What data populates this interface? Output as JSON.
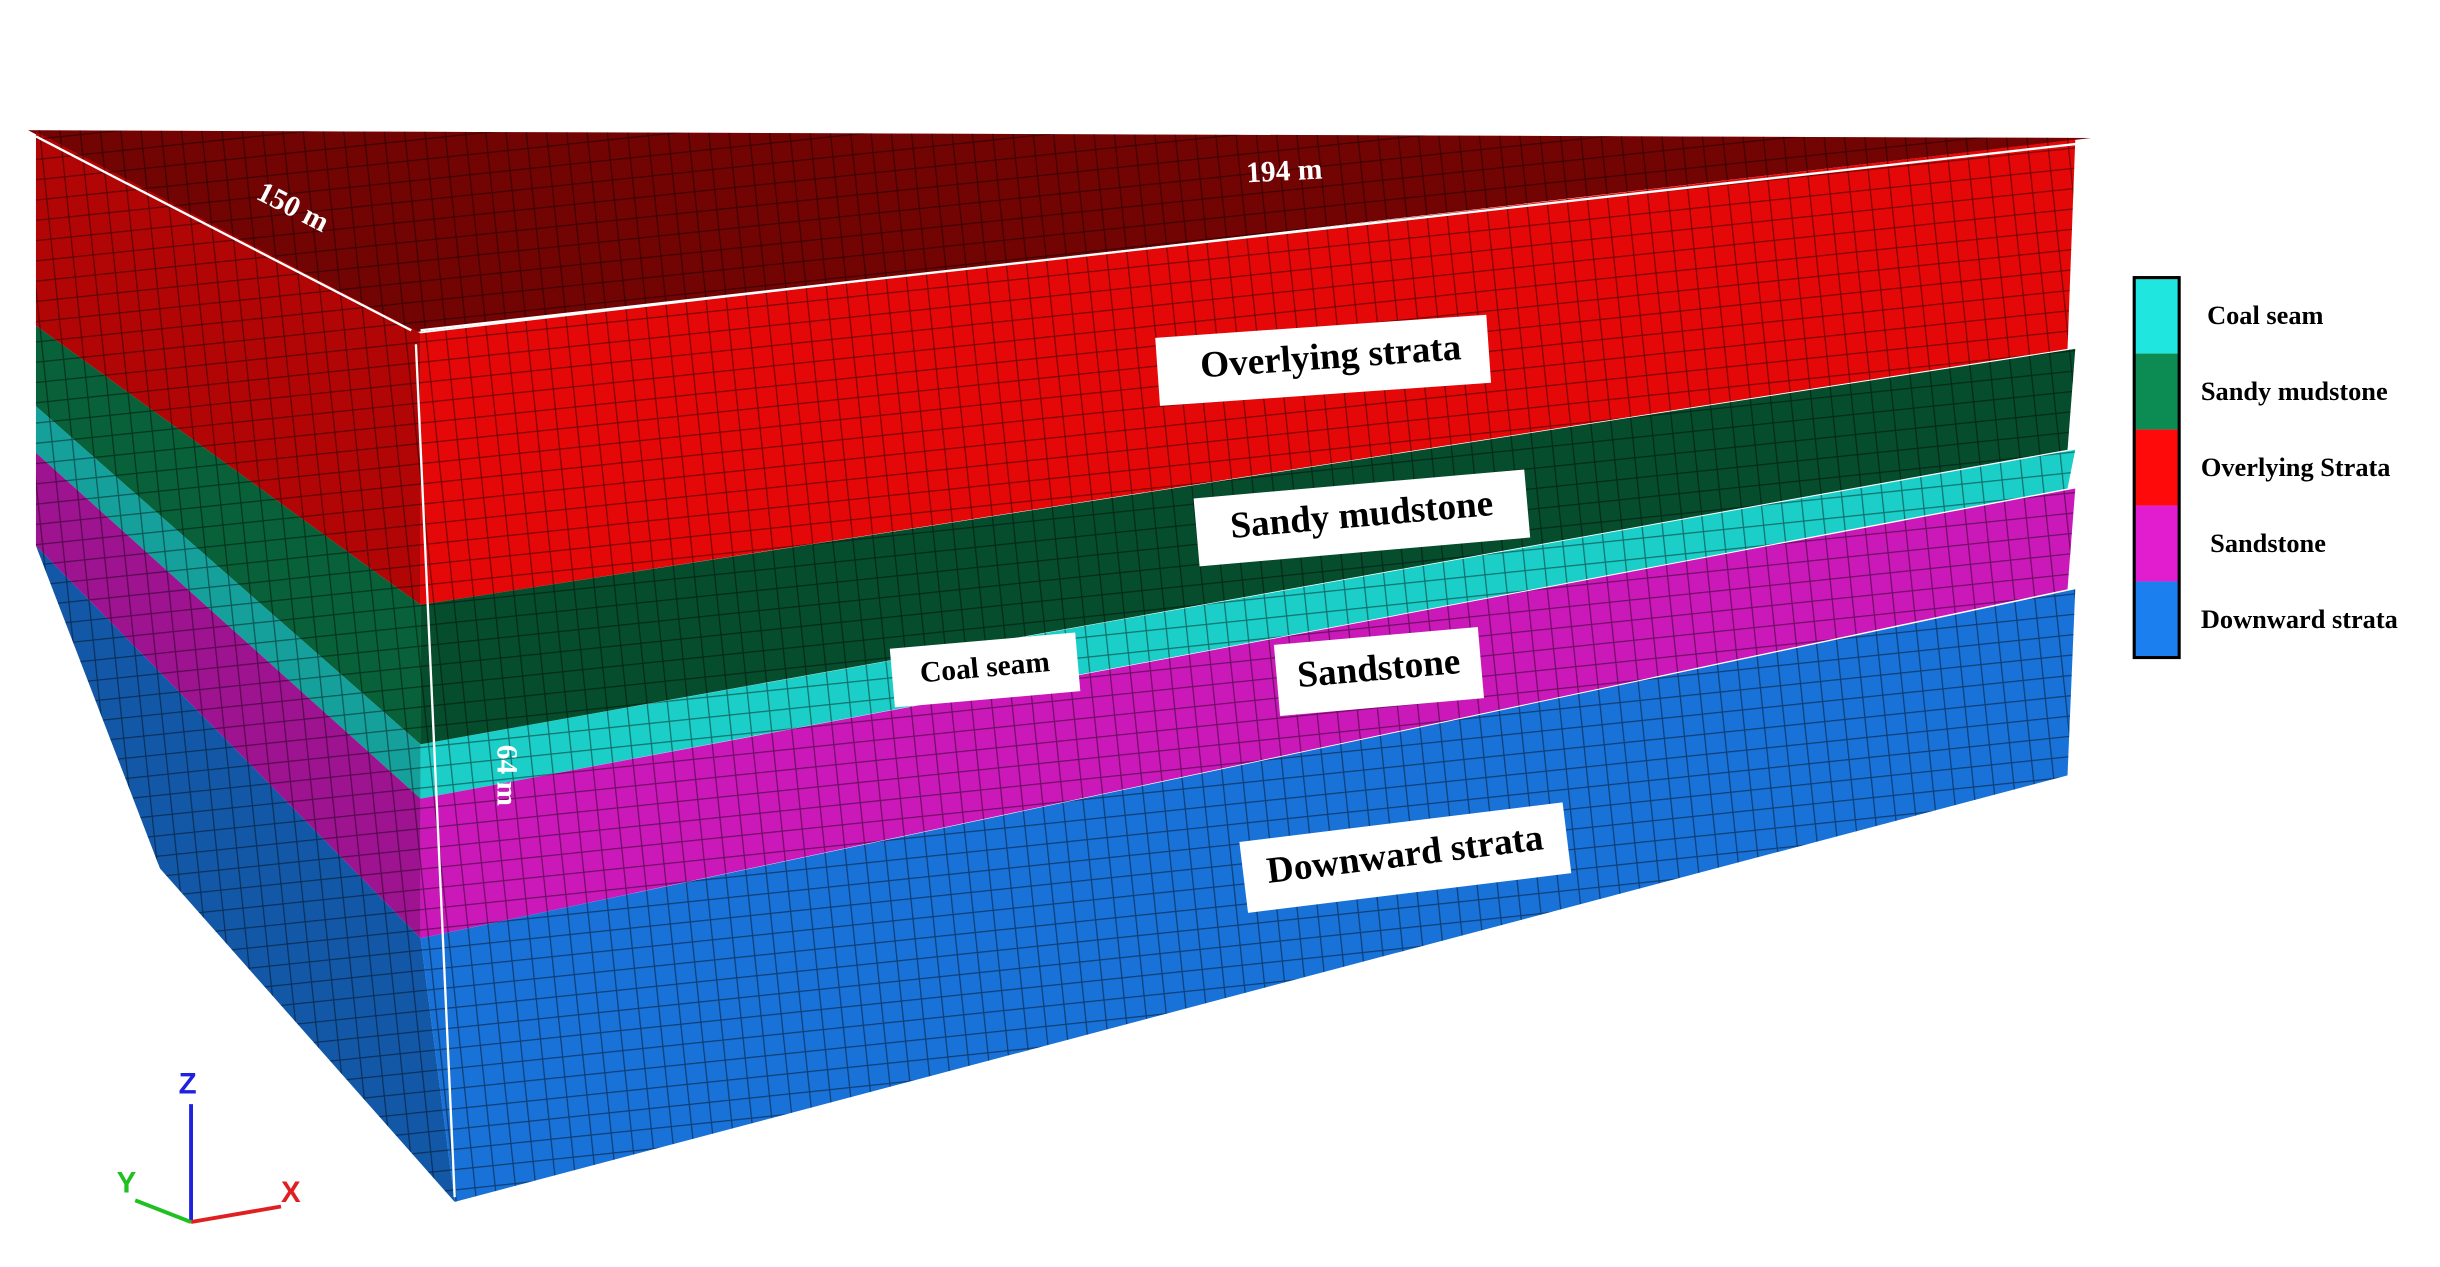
{
  "dimensions": {
    "width": "194 m",
    "depth": "150 m",
    "height": "64 m"
  },
  "layer_labels": [
    "Overlying strata",
    "Sandy mudstone",
    "Coal seam",
    "Sandstone",
    "Downward strata"
  ],
  "legend": {
    "items": [
      {
        "label": "Coal seam",
        "color": "#1fe6de"
      },
      {
        "label": "Sandy mudstone",
        "color": "#0c8c52"
      },
      {
        "label": "Overlying Strata",
        "color": "#ff0a0a"
      },
      {
        "label": "Sandstone",
        "color": "#e21ccf"
      },
      {
        "label": "Downward strata",
        "color": "#1c7ff0"
      }
    ]
  },
  "axes": {
    "x": "X",
    "y": "Y",
    "z": "Z"
  }
}
